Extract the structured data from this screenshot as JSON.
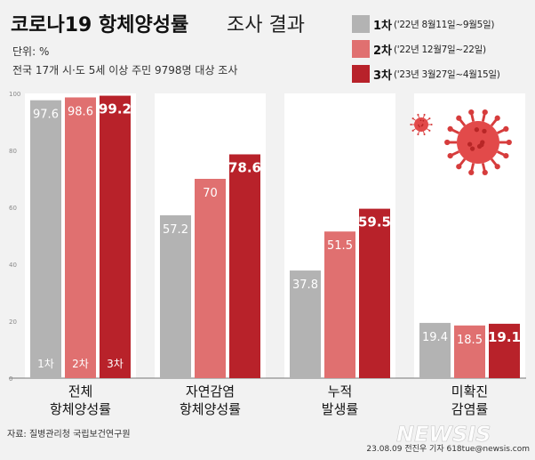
{
  "header": {
    "title_bold": "코로나19 항체양성률",
    "title_light": "조사 결과",
    "unit": "단위: %",
    "note": "전국 17개 시·도 5세 이상 주민 9798명 대상 조사"
  },
  "legend": [
    {
      "name": "1차",
      "period": "('22년 8월11일~9월5일)",
      "color": "#b3b3b3"
    },
    {
      "name": "2차",
      "period": "('22년 12월7일~22일)",
      "color": "#e07070"
    },
    {
      "name": "3차",
      "period": "('23년 3월27일~4월15일)",
      "color": "#b8222a"
    }
  ],
  "footer": {
    "source": "자료: 질병관리청 국립보건연구원",
    "credit": "23.08.09 전진우 기자 618tue@newsis.com",
    "logo": "NEWSIS"
  },
  "icons": [
    "virus-icon-large",
    "virus-icon-small"
  ],
  "chart_data": {
    "type": "bar",
    "title": "코로나19 항체양성률 조사 결과",
    "categories": [
      [
        "전체",
        "항체양성률"
      ],
      [
        "자연감염",
        "항체양성률"
      ],
      [
        "누적",
        "발생률"
      ],
      [
        "미확진",
        "감염률"
      ]
    ],
    "series": [
      {
        "name": "1차",
        "values": [
          97.6,
          57.2,
          37.8,
          19.4
        ]
      },
      {
        "name": "2차",
        "values": [
          98.6,
          70,
          51.5,
          18.5
        ]
      },
      {
        "name": "3차",
        "values": [
          99.2,
          78.6,
          59.5,
          19.1
        ]
      }
    ],
    "value_labels": [
      [
        "97.6",
        "57.2",
        "37.8",
        "19.4"
      ],
      [
        "98.6",
        "70",
        "51.5",
        "18.5"
      ],
      [
        "99.2",
        "78.6",
        "59.5",
        "19.1"
      ]
    ],
    "bar_bottom_labels": [
      "1차",
      "2차",
      "3차"
    ],
    "yticks": [
      "0",
      "20",
      "40",
      "60",
      "80",
      "100"
    ],
    "ylim": [
      0,
      100
    ],
    "grid": false
  }
}
